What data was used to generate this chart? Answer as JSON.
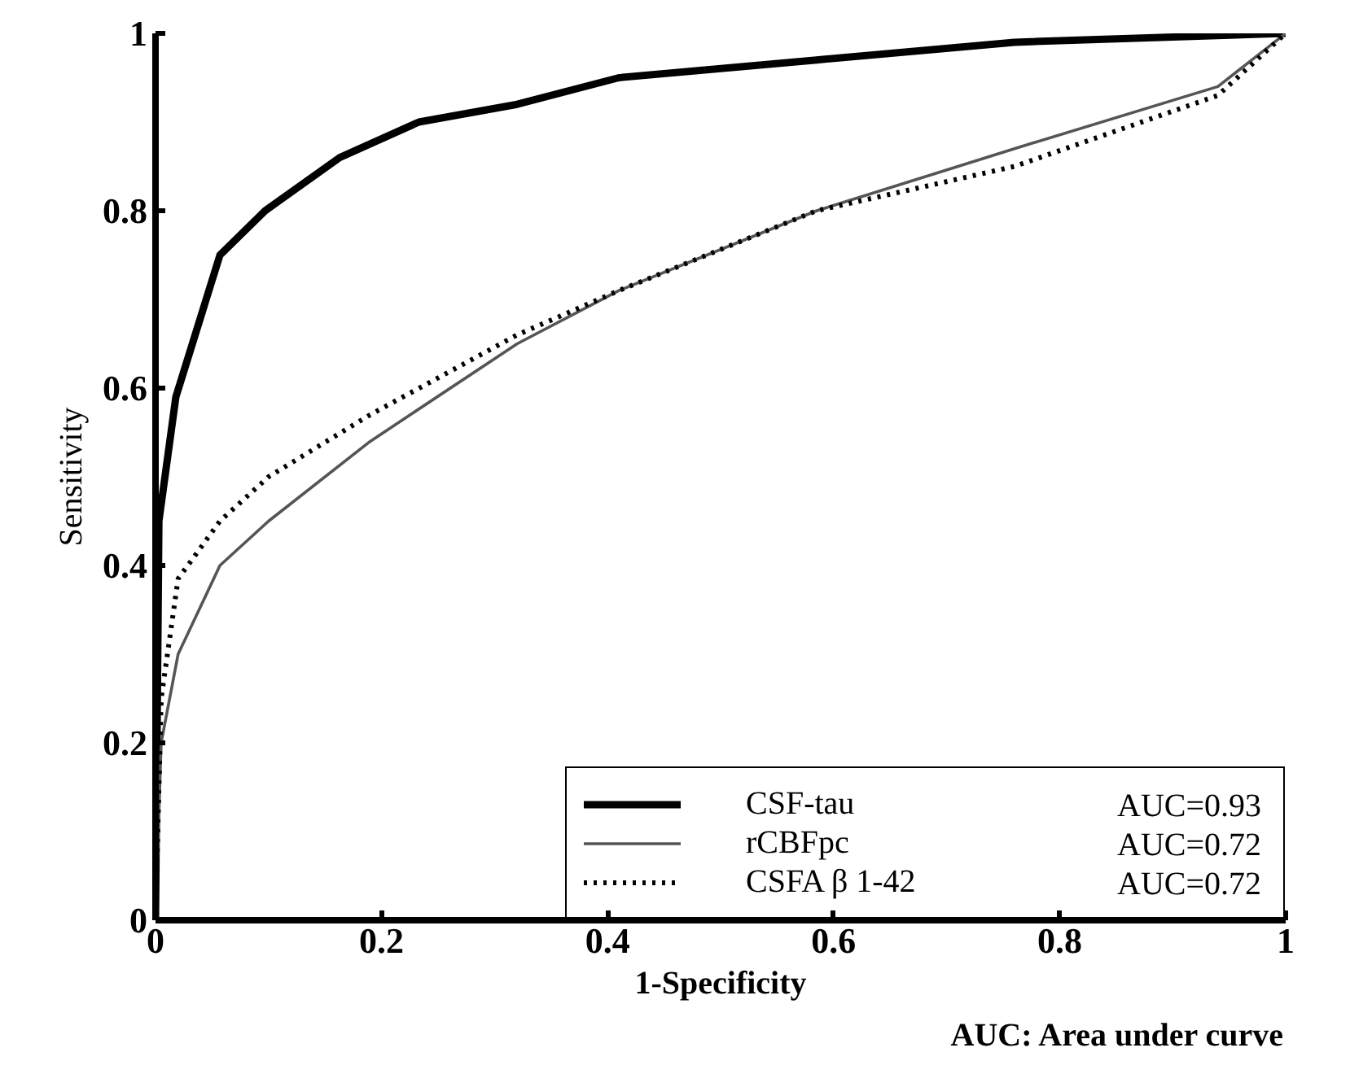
{
  "chart_data": {
    "type": "line",
    "xlabel": "1-Specificity",
    "ylabel": "Sensitivity",
    "xlim": [
      0,
      1
    ],
    "ylim": [
      0,
      1
    ],
    "xticks": [
      0,
      0.2,
      0.4,
      0.6,
      0.8,
      1
    ],
    "yticks": [
      0,
      0.2,
      0.4,
      0.6,
      0.8,
      1
    ],
    "grid": false,
    "legend": "bottom right",
    "annotations": [
      "AUC=0.93",
      "AUC=0.72",
      "AUC=0.72",
      "AUC: Area under curve"
    ],
    "series": [
      {
        "name": "CSF-tau",
        "color": "#000000",
        "line_style": "solid",
        "x": [
          0,
          0.003,
          0.018,
          0.057,
          0.097,
          0.163,
          0.233,
          0.32,
          0.41,
          0.585,
          0.76,
          1
        ],
        "values": [
          0,
          0.45,
          0.59,
          0.75,
          0.8,
          0.86,
          0.9,
          0.92,
          0.95,
          0.97,
          0.99,
          1
        ]
      },
      {
        "name": "rCBFpc",
        "color": "#555555",
        "line_style": "solid",
        "x": [
          0,
          0.005,
          0.02,
          0.057,
          0.1,
          0.19,
          0.32,
          0.41,
          0.585,
          0.76,
          0.94,
          1
        ],
        "values": [
          0,
          0.2,
          0.3,
          0.4,
          0.45,
          0.54,
          0.65,
          0.71,
          0.8,
          0.87,
          0.94,
          1
        ]
      },
      {
        "name": "CSFA β 1-42",
        "color": "#000000",
        "line_style": "dotted",
        "x": [
          0,
          0.005,
          0.02,
          0.057,
          0.1,
          0.19,
          0.32,
          0.41,
          0.585,
          0.76,
          0.94,
          1
        ],
        "values": [
          0,
          0.25,
          0.385,
          0.45,
          0.5,
          0.57,
          0.66,
          0.71,
          0.8,
          0.85,
          0.93,
          1
        ]
      }
    ]
  }
}
